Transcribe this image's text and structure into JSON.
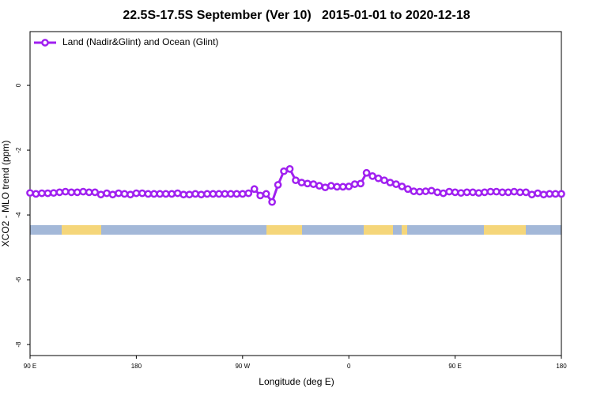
{
  "chart_data": {
    "type": "line",
    "title": "22.5S-17.5S September (Ver 10)   2015-01-01 to 2020-12-18",
    "x_label": "Longitude (deg E)",
    "y_label": "XCO2 - MLO trend (ppm)",
    "x": [
      90,
      95,
      100,
      105,
      110,
      115,
      120,
      125,
      130,
      135,
      140,
      145,
      150,
      155,
      160,
      165,
      170,
      175,
      180,
      185,
      190,
      195,
      200,
      205,
      210,
      215,
      220,
      225,
      230,
      235,
      240,
      245,
      250,
      255,
      260,
      265,
      270,
      275,
      280,
      285,
      290,
      295,
      300,
      305,
      310,
      315,
      320,
      325,
      330,
      335,
      340,
      345,
      350,
      355,
      360,
      365,
      370,
      375,
      380,
      385,
      390,
      395,
      400,
      405,
      410,
      415,
      420,
      425,
      430,
      435,
      440,
      445,
      450,
      455,
      460,
      465,
      470,
      475,
      480,
      485,
      490,
      495,
      500,
      505,
      510,
      515,
      520,
      525,
      530,
      535,
      540
    ],
    "series": [
      {
        "name": "Land (Nadir&Glint) and Ocean (Glint)",
        "color": "#a020f0",
        "values": [
          -3.32,
          -3.35,
          -3.33,
          -3.33,
          -3.32,
          -3.3,
          -3.28,
          -3.3,
          -3.3,
          -3.28,
          -3.3,
          -3.3,
          -3.37,
          -3.33,
          -3.37,
          -3.33,
          -3.35,
          -3.37,
          -3.33,
          -3.33,
          -3.35,
          -3.35,
          -3.35,
          -3.35,
          -3.35,
          -3.33,
          -3.37,
          -3.37,
          -3.35,
          -3.37,
          -3.35,
          -3.35,
          -3.35,
          -3.35,
          -3.35,
          -3.35,
          -3.35,
          -3.33,
          -3.2,
          -3.4,
          -3.35,
          -3.6,
          -3.07,
          -2.65,
          -2.58,
          -2.93,
          -3.0,
          -3.03,
          -3.05,
          -3.1,
          -3.15,
          -3.1,
          -3.13,
          -3.13,
          -3.12,
          -3.05,
          -3.03,
          -2.7,
          -2.8,
          -2.87,
          -2.93,
          -3.0,
          -3.05,
          -3.12,
          -3.2,
          -3.27,
          -3.28,
          -3.27,
          -3.25,
          -3.3,
          -3.33,
          -3.28,
          -3.3,
          -3.32,
          -3.3,
          -3.3,
          -3.32,
          -3.3,
          -3.28,
          -3.28,
          -3.3,
          -3.3,
          -3.28,
          -3.3,
          -3.3,
          -3.37,
          -3.33,
          -3.37,
          -3.35,
          -3.35,
          -3.35
        ]
      }
    ],
    "xlim": [
      90,
      540
    ],
    "xticks": [
      {
        "value": 90,
        "label": "90 E"
      },
      180,
      {
        "value": 270,
        "label": "90 W"
      },
      {
        "value": 360,
        "label": "0"
      },
      {
        "value": 450,
        "label": "90 E"
      },
      {
        "value": 540,
        "label": "180"
      }
    ],
    "ylim": [
      -8.34,
      1.66
    ],
    "yticks": [
      0,
      -2,
      -4,
      -6,
      -8
    ],
    "legend": "top-left"
  }
}
